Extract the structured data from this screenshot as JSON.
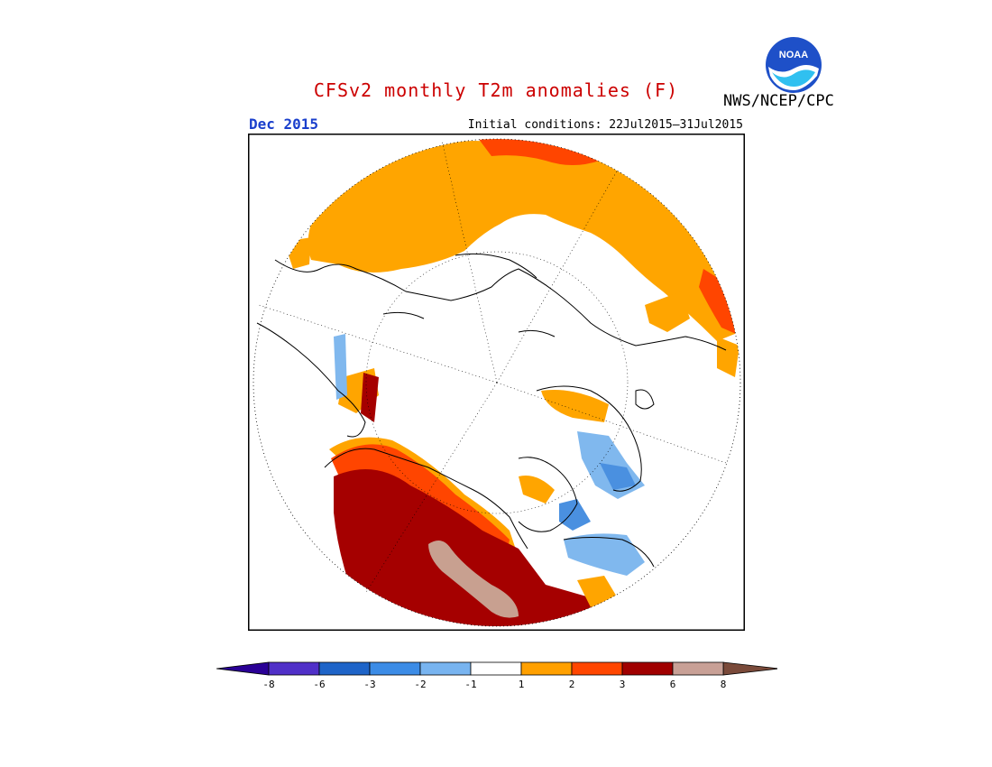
{
  "header": {
    "title": "CFSv2 monthly T2m anomalies (F)",
    "month": "Dec 2015",
    "initial_conditions": "Initial conditions: 22Jul2015–31Jul2015",
    "agency": "NWS/NCEP/CPC",
    "logo_text": "NOAA"
  },
  "colors": {
    "title": "#cc0000",
    "month": "#1a3fcc",
    "anom_gt1": "#ffa500",
    "anom_gt2": "#ff4500",
    "anom_gt3": "#a50000",
    "anom_gt6": "#c8a090",
    "anom_lt1": "#80b8ee",
    "anom_lt2": "#4a90e0"
  },
  "colorbar": {
    "labels": [
      "-8",
      "-6",
      "-3",
      "-2",
      "-1",
      "1",
      "2",
      "3",
      "6",
      "8"
    ],
    "bins": [
      {
        "color": "#5030c8"
      },
      {
        "color": "#1e64c8"
      },
      {
        "color": "#3c8ce6"
      },
      {
        "color": "#78b4f0"
      },
      {
        "color": "#ffffff"
      },
      {
        "color": "#ffa000"
      },
      {
        "color": "#ff4600"
      },
      {
        "color": "#a00000"
      },
      {
        "color": "#c8a096"
      }
    ],
    "low_end_color": "#2a0096",
    "high_end_color": "#7a4a3a"
  }
}
